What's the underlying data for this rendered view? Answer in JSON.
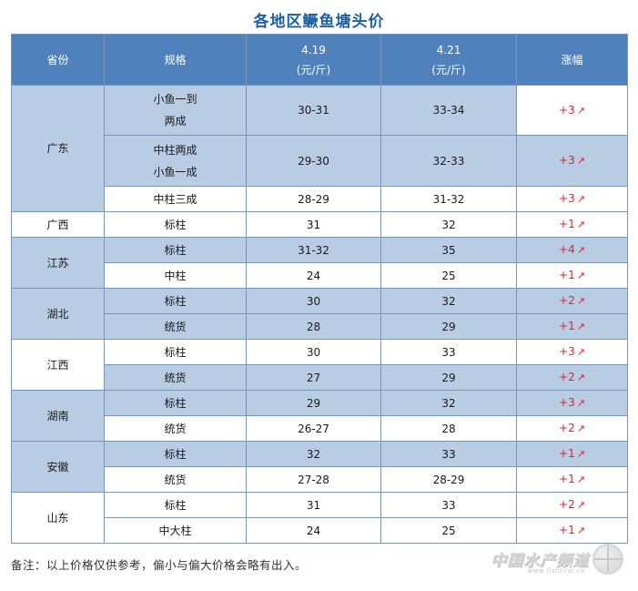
{
  "title": "各地区鳜鱼塘头价",
  "header": {
    "province": "省份",
    "spec": "规格",
    "date1": "4.19",
    "date2": "4.21",
    "unit": "(元/斤)",
    "change": "涨幅"
  },
  "rows": [
    {
      "province": "广东",
      "spec_lines": [
        "小鱼一到",
        "两成"
      ],
      "p1": "30-31",
      "p2": "33-34",
      "change": "+3"
    },
    {
      "spec_lines": [
        "中柱两成",
        "小鱼一成"
      ],
      "p1": "29-30",
      "p2": "32-33",
      "change": "+3"
    },
    {
      "spec": "中柱三成",
      "p1": "28-29",
      "p2": "31-32",
      "change": "+3"
    },
    {
      "province": "广西",
      "spec": "标柱",
      "p1": "31",
      "p2": "32",
      "change": "+1"
    },
    {
      "province": "江苏",
      "spec": "标柱",
      "p1": "31-32",
      "p2": "35",
      "change": "+4"
    },
    {
      "spec": "中柱",
      "p1": "24",
      "p2": "25",
      "change": "+1"
    },
    {
      "province": "湖北",
      "spec": "标柱",
      "p1": "30",
      "p2": "32",
      "change": "+2"
    },
    {
      "spec": "统货",
      "p1": "28",
      "p2": "29",
      "change": "+1"
    },
    {
      "province": "江西",
      "spec": "标柱",
      "p1": "30",
      "p2": "33",
      "change": "+3"
    },
    {
      "spec": "统货",
      "p1": "27",
      "p2": "29",
      "change": "+2"
    },
    {
      "province": "湖南",
      "spec": "标柱",
      "p1": "29",
      "p2": "32",
      "change": "+3"
    },
    {
      "spec": "统货",
      "p1": "26-27",
      "p2": "28",
      "change": "+2"
    },
    {
      "province": "安徽",
      "spec": "标柱",
      "p1": "32",
      "p2": "33",
      "change": "+1"
    },
    {
      "spec": "统货",
      "p1": "27-28",
      "p2": "28-29",
      "change": "+1"
    },
    {
      "province": "山东",
      "spec": "标柱",
      "p1": "31",
      "p2": "33",
      "change": "+2"
    },
    {
      "spec": "中大柱",
      "p1": "24",
      "p2": "25",
      "change": "+1"
    }
  ],
  "arrow": "↗",
  "note": "备注：以上价格仅供参考，偏小与偏大价格会略有出入。",
  "watermark": {
    "text": "中国水产频道",
    "url": "www.fishfirst.cn"
  },
  "colors": {
    "title": "#1c5fa8",
    "header_bg": "#4f81bd",
    "row_blue": "#b8cce4",
    "change": "#e8202a"
  }
}
